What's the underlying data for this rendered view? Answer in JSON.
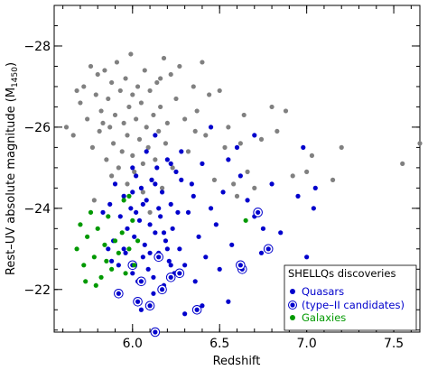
{
  "chart_data": {
    "type": "scatter",
    "xlabel": "Redshift",
    "ylabel_main": "Rest–UV absolute magnitude (M",
    "ylabel_sub": "1450",
    "ylabel_close": ")",
    "xlim": [
      5.55,
      7.65
    ],
    "ylim": [
      -20.95,
      -29.0
    ],
    "x_ticks": [
      6.0,
      6.5,
      7.0,
      7.5
    ],
    "x_tick_labels": [
      "6.0",
      "6.5",
      "7.0",
      "7.5"
    ],
    "y_ticks": [
      -22,
      -24,
      -26,
      -28
    ],
    "y_tick_labels": [
      "−22",
      "−24",
      "−26",
      "−28"
    ],
    "y_minor_step": 0.5,
    "x_minor_step": 0.1,
    "grid": false,
    "legend": {
      "placement": "bottom-right",
      "title": "SHELLQs discoveries",
      "entries": [
        {
          "label": "Quasars",
          "color": "#0000cc",
          "marker": "dot"
        },
        {
          "label": "(type–II candidates)",
          "color": "#0000cc",
          "marker": "ringed-dot"
        },
        {
          "label": "Galaxies",
          "color": "#009900",
          "marker": "dot"
        }
      ]
    },
    "colors": {
      "known_quasars": "#808080",
      "quasars": "#0000cc",
      "galaxies": "#009900"
    },
    "series": [
      {
        "key": "known",
        "color": "#808080",
        "points": [
          [
            5.62,
            -26.0
          ],
          [
            5.66,
            -25.8
          ],
          [
            5.7,
            -26.6
          ],
          [
            5.72,
            -27.0
          ],
          [
            5.74,
            -26.2
          ],
          [
            5.76,
            -27.5
          ],
          [
            5.77,
            -25.5
          ],
          [
            5.79,
            -26.8
          ],
          [
            5.8,
            -27.3
          ],
          [
            5.81,
            -25.9
          ],
          [
            5.82,
            -26.4
          ],
          [
            5.84,
            -27.4
          ],
          [
            5.85,
            -25.2
          ],
          [
            5.86,
            -26.7
          ],
          [
            5.87,
            -26.0
          ],
          [
            5.88,
            -27.1
          ],
          [
            5.88,
            -24.8
          ],
          [
            5.89,
            -25.6
          ],
          [
            5.9,
            -26.3
          ],
          [
            5.91,
            -27.6
          ],
          [
            5.92,
            -25.0
          ],
          [
            5.93,
            -26.9
          ],
          [
            5.94,
            -25.4
          ],
          [
            5.95,
            -26.1
          ],
          [
            5.96,
            -27.2
          ],
          [
            5.97,
            -24.6
          ],
          [
            5.97,
            -25.8
          ],
          [
            5.98,
            -26.5
          ],
          [
            5.99,
            -27.8
          ],
          [
            6.0,
            -25.3
          ],
          [
            6.0,
            -26.8
          ],
          [
            6.01,
            -24.9
          ],
          [
            6.02,
            -26.2
          ],
          [
            6.03,
            -27.0
          ],
          [
            6.04,
            -25.7
          ],
          [
            6.05,
            -26.6
          ],
          [
            6.06,
            -24.4
          ],
          [
            6.06,
            -25.1
          ],
          [
            6.07,
            -27.4
          ],
          [
            6.08,
            -26.0
          ],
          [
            6.09,
            -25.5
          ],
          [
            6.1,
            -26.9
          ],
          [
            6.11,
            -24.7
          ],
          [
            6.12,
            -26.3
          ],
          [
            6.13,
            -25.2
          ],
          [
            6.14,
            -27.1
          ],
          [
            6.15,
            -25.9
          ],
          [
            6.16,
            -26.5
          ],
          [
            6.17,
            -24.5
          ],
          [
            6.18,
            -27.7
          ],
          [
            6.19,
            -25.6
          ],
          [
            6.2,
            -26.1
          ],
          [
            6.22,
            -27.3
          ],
          [
            6.23,
            -25.0
          ],
          [
            6.25,
            -26.7
          ],
          [
            6.27,
            -27.5
          ],
          [
            6.28,
            -29.1
          ],
          [
            6.3,
            -26.2
          ],
          [
            6.32,
            -25.4
          ],
          [
            6.35,
            -27.0
          ],
          [
            6.37,
            -26.4
          ],
          [
            6.4,
            -27.6
          ],
          [
            6.42,
            -25.8
          ],
          [
            6.44,
            -26.8
          ],
          [
            6.47,
            -24.7
          ],
          [
            6.5,
            -26.9
          ],
          [
            6.53,
            -25.5
          ],
          [
            6.55,
            -26.0
          ],
          [
            6.58,
            -24.6
          ],
          [
            6.6,
            -24.3
          ],
          [
            6.62,
            -25.6
          ],
          [
            6.64,
            -26.3
          ],
          [
            6.66,
            -24.9
          ],
          [
            6.7,
            -24.5
          ],
          [
            6.74,
            -25.7
          ],
          [
            6.8,
            -26.5
          ],
          [
            6.83,
            -25.9
          ],
          [
            6.88,
            -26.4
          ],
          [
            6.92,
            -24.8
          ],
          [
            7.0,
            -24.9
          ],
          [
            7.03,
            -25.3
          ],
          [
            7.15,
            -24.7
          ],
          [
            7.2,
            -25.5
          ],
          [
            7.55,
            -25.1
          ],
          [
            7.65,
            -25.6
          ],
          [
            5.78,
            -24.2
          ],
          [
            5.95,
            -24.3
          ],
          [
            6.1,
            -23.9
          ],
          [
            5.68,
            -26.9
          ],
          [
            5.83,
            -26.1
          ],
          [
            6.16,
            -27.2
          ],
          [
            6.36,
            -25.9
          ]
        ]
      },
      {
        "key": "quasars",
        "color": "#0000cc",
        "points": [
          [
            5.83,
            -23.9
          ],
          [
            5.87,
            -24.1
          ],
          [
            5.89,
            -23.2
          ],
          [
            5.9,
            -24.6
          ],
          [
            5.92,
            -22.6
          ],
          [
            5.93,
            -23.8
          ],
          [
            5.95,
            -24.3
          ],
          [
            5.96,
            -22.9
          ],
          [
            5.97,
            -23.5
          ],
          [
            5.99,
            -24.0
          ],
          [
            6.0,
            -22.4
          ],
          [
            6.01,
            -23.3
          ],
          [
            6.02,
            -24.8
          ],
          [
            6.03,
            -22.2
          ],
          [
            6.04,
            -23.7
          ],
          [
            6.05,
            -24.5
          ],
          [
            6.06,
            -22.8
          ],
          [
            6.07,
            -23.1
          ],
          [
            6.08,
            -24.2
          ],
          [
            6.09,
            -22.5
          ],
          [
            6.1,
            -23.6
          ],
          [
            6.11,
            -24.7
          ],
          [
            6.12,
            -22.3
          ],
          [
            6.13,
            -23.4
          ],
          [
            6.14,
            -25.0
          ],
          [
            6.15,
            -22.9
          ],
          [
            6.16,
            -23.8
          ],
          [
            6.17,
            -24.4
          ],
          [
            6.18,
            -22.1
          ],
          [
            6.19,
            -23.2
          ],
          [
            6.2,
            -25.2
          ],
          [
            6.21,
            -22.7
          ],
          [
            6.22,
            -24.1
          ],
          [
            6.23,
            -23.5
          ],
          [
            6.24,
            -22.4
          ],
          [
            6.25,
            -24.9
          ],
          [
            6.27,
            -23.0
          ],
          [
            6.28,
            -25.4
          ],
          [
            6.3,
            -22.6
          ],
          [
            6.32,
            -23.9
          ],
          [
            6.34,
            -24.6
          ],
          [
            6.36,
            -22.2
          ],
          [
            6.38,
            -23.3
          ],
          [
            6.4,
            -25.1
          ],
          [
            6.42,
            -22.8
          ],
          [
            6.45,
            -24.0
          ],
          [
            6.48,
            -23.6
          ],
          [
            6.5,
            -22.5
          ],
          [
            6.52,
            -24.4
          ],
          [
            6.55,
            -21.7
          ],
          [
            6.57,
            -23.1
          ],
          [
            6.6,
            -25.5
          ],
          [
            6.63,
            -22.6
          ],
          [
            6.66,
            -24.2
          ],
          [
            6.7,
            -23.8
          ],
          [
            6.74,
            -22.9
          ],
          [
            6.8,
            -24.6
          ],
          [
            6.85,
            -23.4
          ],
          [
            6.95,
            -24.3
          ],
          [
            7.0,
            -22.8
          ],
          [
            7.04,
            -24.0
          ],
          [
            6.0,
            -25.0
          ],
          [
            6.08,
            -25.4
          ],
          [
            6.13,
            -25.8
          ],
          [
            6.22,
            -25.1
          ],
          [
            6.45,
            -26.0
          ],
          [
            6.55,
            -25.2
          ],
          [
            6.7,
            -25.8
          ],
          [
            6.98,
            -25.5
          ],
          [
            6.05,
            -21.5
          ],
          [
            6.12,
            -21.9
          ],
          [
            6.3,
            -21.4
          ],
          [
            6.4,
            -21.6
          ],
          [
            5.86,
            -23.0
          ],
          [
            5.88,
            -22.7
          ],
          [
            6.02,
            -23.9
          ],
          [
            6.06,
            -24.1
          ],
          [
            6.15,
            -24.0
          ],
          [
            6.18,
            -23.4
          ],
          [
            6.26,
            -23.9
          ],
          [
            6.35,
            -24.3
          ],
          [
            7.05,
            -24.5
          ],
          [
            6.9,
            -22.5
          ],
          [
            6.75,
            -23.5
          ],
          [
            6.62,
            -24.8
          ],
          [
            6.28,
            -24.7
          ],
          [
            6.2,
            -23.0
          ],
          [
            6.1,
            -22.9
          ],
          [
            5.95,
            -23.0
          ],
          [
            6.0,
            -24.4
          ],
          [
            6.13,
            -24.6
          ],
          [
            6.22,
            -22.6
          ]
        ]
      },
      {
        "key": "type2",
        "color": "#0000cc",
        "points": [
          [
            5.92,
            -21.9
          ],
          [
            6.03,
            -21.7
          ],
          [
            6.1,
            -21.6
          ],
          [
            6.13,
            -20.95
          ],
          [
            6.17,
            -22.0
          ],
          [
            6.22,
            -22.3
          ],
          [
            6.37,
            -21.5
          ],
          [
            6.63,
            -22.5
          ],
          [
            6.78,
            -23.0
          ],
          [
            6.72,
            -23.9
          ],
          [
            6.05,
            -22.2
          ],
          [
            6.0,
            -22.6
          ],
          [
            6.27,
            -22.4
          ],
          [
            6.62,
            -22.6
          ],
          [
            6.15,
            -22.8
          ]
        ]
      },
      {
        "key": "galaxies",
        "color": "#009900",
        "points": [
          [
            5.68,
            -23.0
          ],
          [
            5.7,
            -23.6
          ],
          [
            5.72,
            -22.6
          ],
          [
            5.74,
            -23.3
          ],
          [
            5.76,
            -23.9
          ],
          [
            5.78,
            -22.8
          ],
          [
            5.8,
            -23.5
          ],
          [
            5.82,
            -22.3
          ],
          [
            5.84,
            -23.1
          ],
          [
            5.85,
            -22.7
          ],
          [
            5.86,
            -23.8
          ],
          [
            5.88,
            -22.5
          ],
          [
            5.9,
            -23.2
          ],
          [
            5.92,
            -22.9
          ],
          [
            5.94,
            -23.4
          ],
          [
            5.96,
            -22.4
          ],
          [
            5.98,
            -23.0
          ],
          [
            6.0,
            -23.7
          ],
          [
            6.01,
            -22.6
          ],
          [
            6.03,
            -23.2
          ],
          [
            5.73,
            -22.2
          ],
          [
            5.79,
            -22.1
          ],
          [
            5.95,
            -24.2
          ],
          [
            5.98,
            -24.3
          ],
          [
            6.65,
            -23.7
          ]
        ]
      }
    ]
  }
}
